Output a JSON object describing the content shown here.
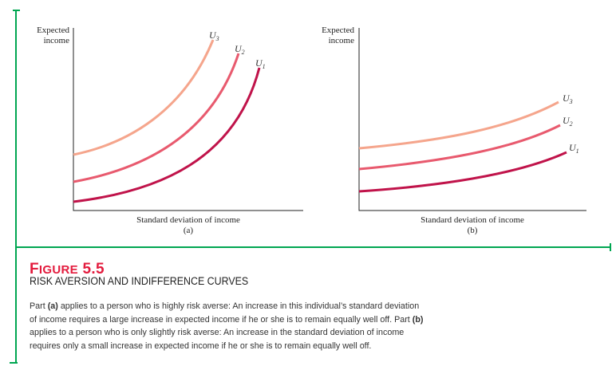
{
  "figure": {
    "label_prefix": "F",
    "label_rest": "IGURE",
    "number": "5.5",
    "title": "RISK AVERSION AND INDIFFERENCE CURVES",
    "caption_parts": [
      "Part ",
      "(a)",
      " applies to a person who is highly risk averse: An increase in this individual’s standard deviation of income requires a large increase in expected income if he or she is to remain equally well off. Part ",
      "(b)",
      " applies to a person who is only slightly risk averse: An increase in the standard deviation of income requires only a small increase in expected income if he or she is to remain equally well off."
    ]
  },
  "panels": [
    {
      "id": "a",
      "ylabel_line1": "Expected",
      "ylabel_line2": "income",
      "xlabel": "Standard deviation of income",
      "tag": "(a)",
      "curves": [
        {
          "name": "U",
          "sub": "3",
          "color": "#f5a58c"
        },
        {
          "name": "U",
          "sub": "2",
          "color": "#e85a6e"
        },
        {
          "name": "U",
          "sub": "1",
          "color": "#c0134a"
        }
      ]
    },
    {
      "id": "b",
      "ylabel_line1": "Expected",
      "ylabel_line2": "income",
      "xlabel": "Standard deviation of income",
      "tag": "(b)",
      "curves": [
        {
          "name": "U",
          "sub": "3",
          "color": "#f5a58c"
        },
        {
          "name": "U",
          "sub": "2",
          "color": "#e85a6e"
        },
        {
          "name": "U",
          "sub": "1",
          "color": "#c0134a"
        }
      ]
    }
  ],
  "colors": {
    "frame": "#00a651",
    "figure_label": "#e31b3d"
  }
}
